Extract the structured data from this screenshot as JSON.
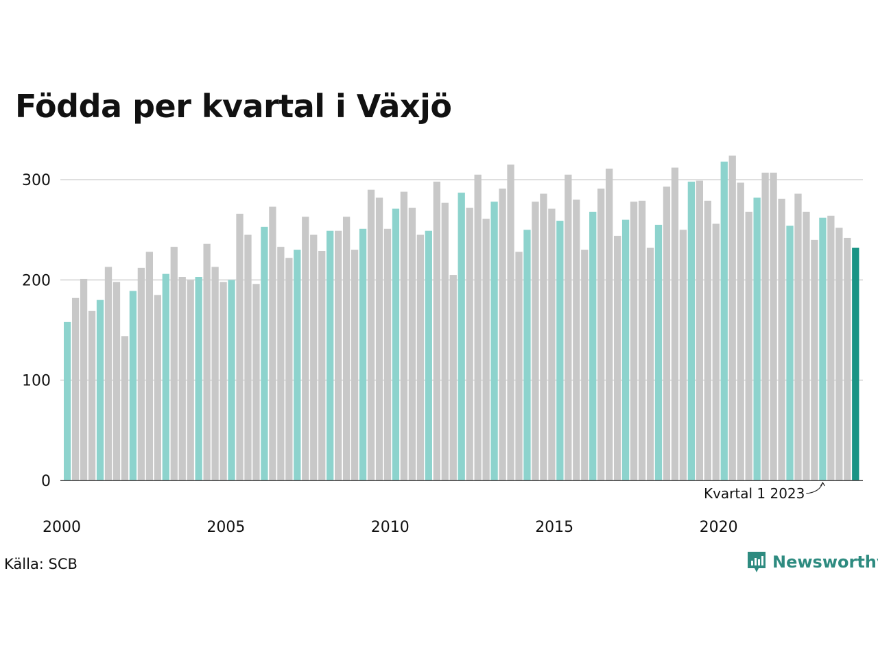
{
  "title": "Födda per kvartal i Växjö",
  "source": "Källa: SCB",
  "brand": "Newsworthy",
  "colors": {
    "q1": "#8dd3cd",
    "other": "#c8c8c8",
    "latest": "#1a9485",
    "grid": "#dddddd",
    "axis": "#333333",
    "brand": "#2e8b80"
  },
  "chart_data": {
    "type": "bar",
    "title": "Födda per kvartal i Växjö",
    "xlabel": "",
    "ylabel": "",
    "ylim": [
      0,
      330
    ],
    "y_ticks": [
      0,
      100,
      200,
      300
    ],
    "x_ticks": [
      "2000",
      "2005",
      "2010",
      "2015",
      "2020"
    ],
    "grid": true,
    "annotation": "Kvartal 1 2023",
    "series": [
      {
        "start": "2000 Q1",
        "values": [
          158,
          182,
          201,
          169,
          180,
          213,
          198,
          144,
          189,
          212,
          228,
          185,
          206,
          233,
          203,
          200,
          203,
          236,
          213,
          198,
          200,
          266,
          245,
          196,
          253,
          273,
          233,
          222,
          230,
          263,
          245,
          229,
          249,
          249,
          263,
          230,
          251,
          290,
          282,
          251,
          271,
          288,
          272,
          245,
          249,
          298,
          277,
          205,
          287,
          272,
          305,
          261,
          278,
          291,
          315,
          228,
          250,
          278,
          286,
          271,
          259,
          305,
          280,
          230,
          268,
          291,
          311,
          244,
          260,
          278,
          279,
          232,
          255,
          293,
          312,
          250,
          298,
          299,
          279,
          256,
          318,
          324,
          297,
          268,
          282,
          307,
          307,
          281,
          254,
          286,
          268,
          240,
          262,
          264,
          252,
          242,
          232
        ]
      }
    ]
  }
}
